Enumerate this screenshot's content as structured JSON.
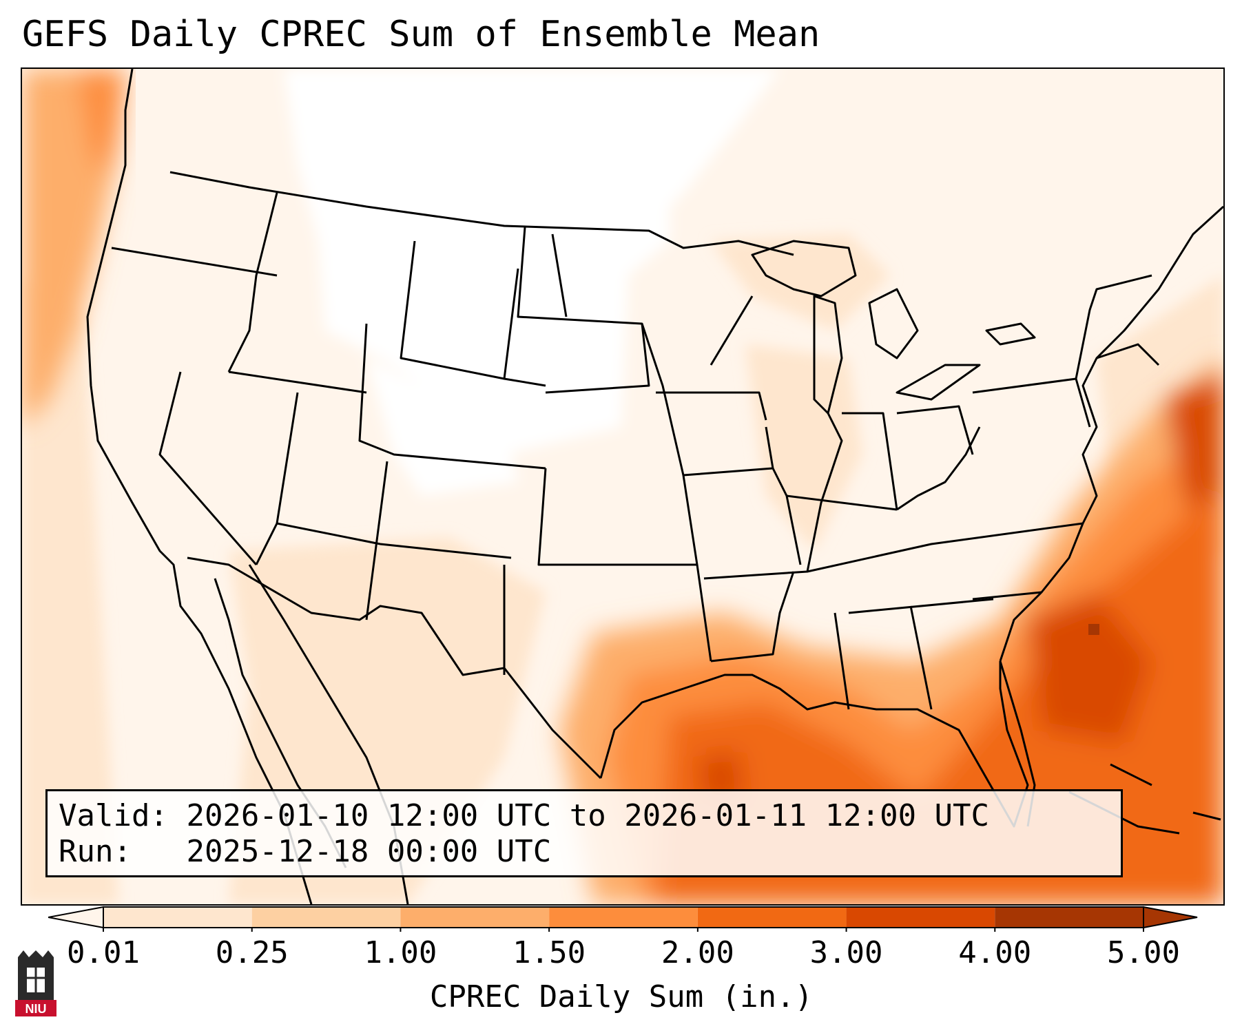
{
  "title": "GEFS Daily CPREC Sum of Ensemble Mean",
  "info": {
    "valid_label": "Valid:",
    "valid_value": "2026-01-10 12:00 UTC to 2026-01-11 12:00 UTC",
    "run_label": "Run:",
    "run_value": "2025-12-18 00:00 UTC"
  },
  "colorbar": {
    "label": "CPREC Daily Sum (in.)",
    "ticks": [
      "0.01",
      "0.25",
      "1.00",
      "1.50",
      "2.00",
      "3.00",
      "4.00",
      "5.00"
    ],
    "colors": [
      "#fff5eb",
      "#fee6ce",
      "#fdd0a2",
      "#fdae6b",
      "#fd8d3c",
      "#f16913",
      "#d94801",
      "#a63603"
    ],
    "extend": "both"
  },
  "logo": {
    "text": "NIU",
    "color": "#c8102e"
  }
}
